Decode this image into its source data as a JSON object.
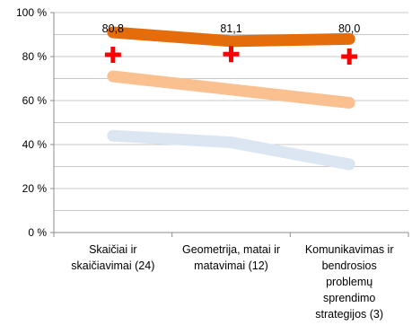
{
  "chart_data": {
    "type": "line",
    "categories": [
      [
        "Skaičiai ir",
        "skaičiavimai (24)"
      ],
      [
        "Geometrija, matai ir",
        "matavimai (12)"
      ],
      [
        "Komunikavimas ir",
        "bendrosios",
        "problemų",
        "sprendimo",
        "strategijos (3)"
      ]
    ],
    "y_ticks": [
      "0 %",
      "20 %",
      "40 %",
      "60 %",
      "80 %",
      "100 %"
    ],
    "ylim": [
      0,
      100
    ],
    "grid": true,
    "series": [
      {
        "color": "#E46C0A",
        "values": [
          91,
          87,
          88
        ]
      },
      {
        "color": "#FAC090",
        "values": [
          71,
          65,
          59
        ]
      },
      {
        "color": "#DCE6F2",
        "values": [
          44,
          41,
          31
        ]
      }
    ],
    "markers": {
      "color": "#FF0000",
      "shape": "cross",
      "values": [
        80.8,
        81.1,
        80.0
      ]
    },
    "data_labels": [
      "80,8",
      "81,1",
      "80,0"
    ]
  }
}
